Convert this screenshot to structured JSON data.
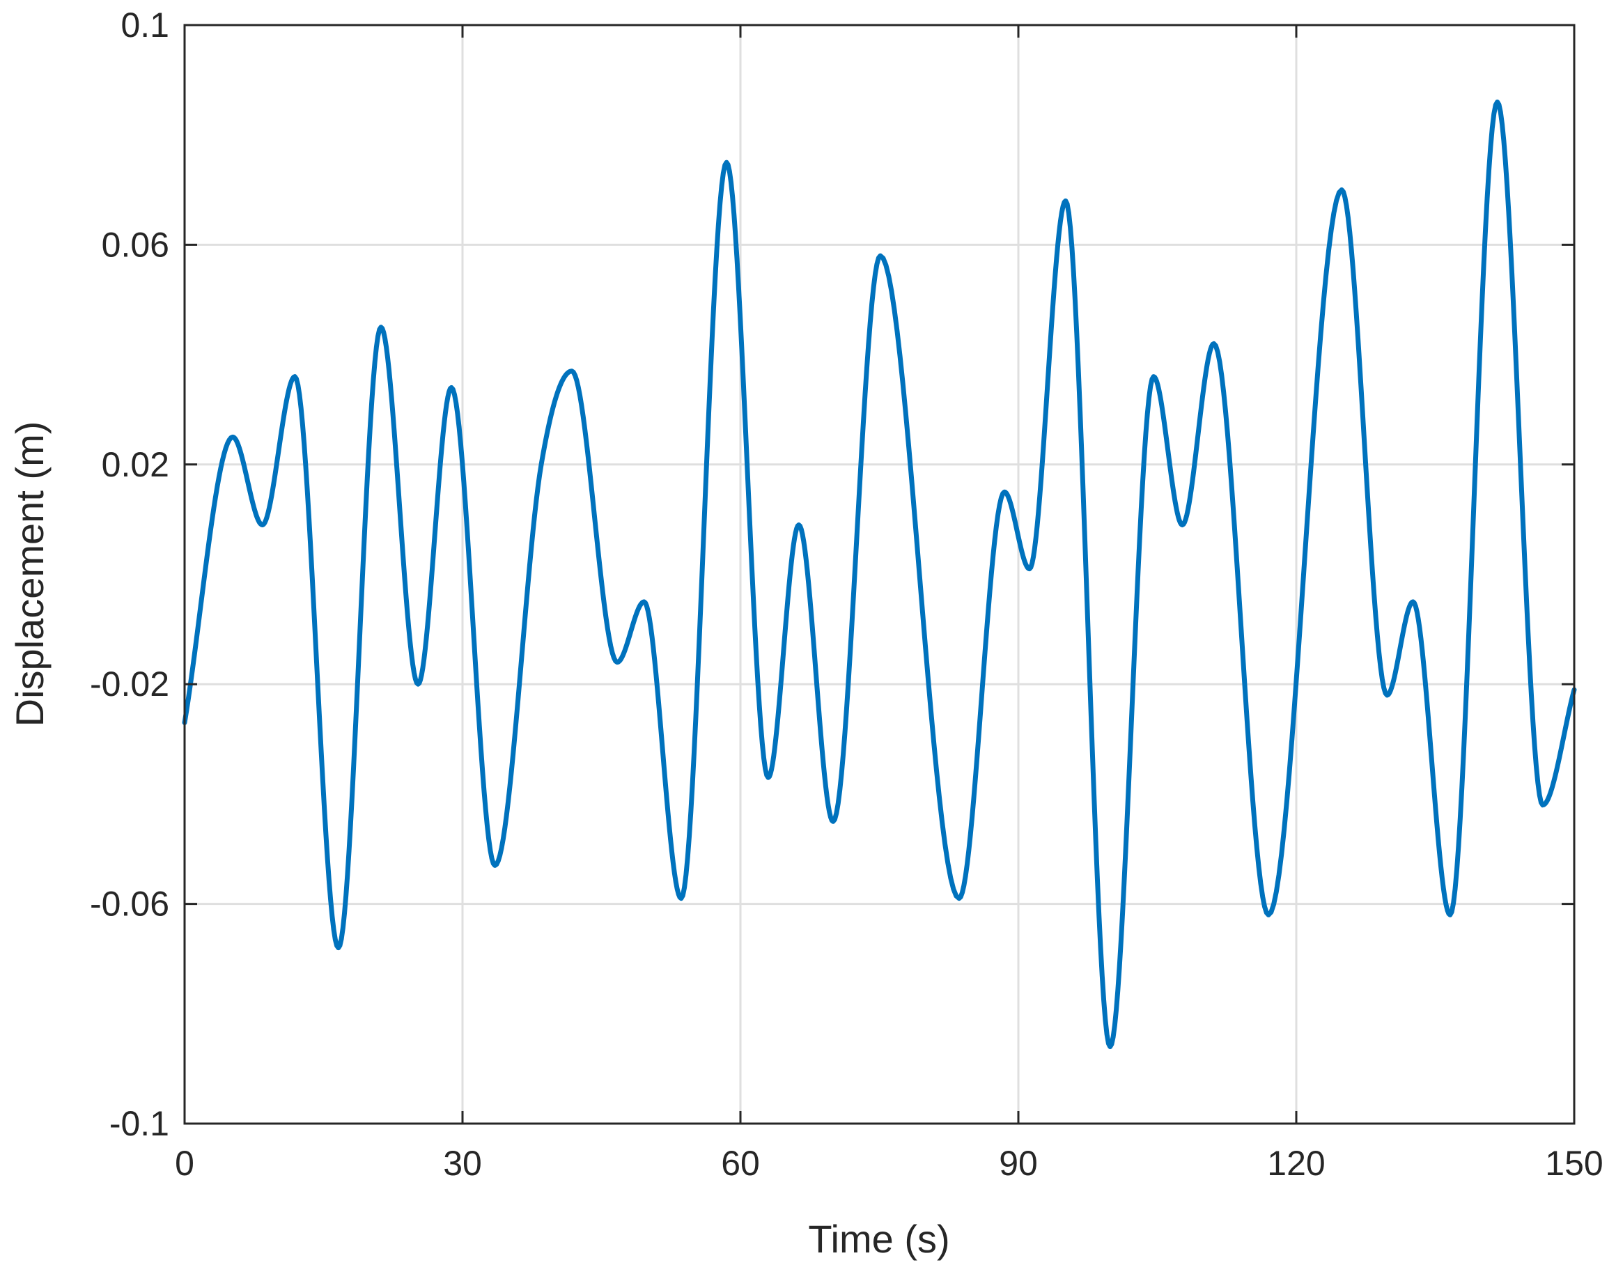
{
  "chart_data": {
    "type": "line",
    "xlabel": "Time (s)",
    "ylabel": "Displacement (m)",
    "xlim": [
      0,
      150
    ],
    "ylim": [
      -0.1,
      0.1
    ],
    "xticks": [
      0,
      30,
      60,
      90,
      120,
      150
    ],
    "xtick_labels": [
      "0",
      "30",
      "60",
      "90",
      "120",
      "150"
    ],
    "yticks": [
      -0.1,
      -0.06,
      -0.02,
      0.02,
      0.06,
      0.1
    ],
    "ytick_labels": [
      "-0.1",
      "-0.06",
      "-0.02",
      "0.02",
      "0.06",
      "0.1"
    ],
    "grid": true,
    "series": [
      {
        "color": "#0072bd",
        "x": [
          0,
          5.2,
          8.4,
          11.9,
          16.6,
          21.2,
          25.2,
          28.8,
          33.5,
          38.5,
          41.8,
          46.7,
          49.6,
          53.6,
          58.5,
          63,
          66.3,
          70,
          75.1,
          83.6,
          88.5,
          91.2,
          95.1,
          99.9,
          104.6,
          107.7,
          111.1,
          117,
          124.9,
          129.8,
          132.6,
          136.6,
          141.7,
          146.6,
          150
        ],
        "y": [
          -0.027,
          0.025,
          0.009,
          0.036,
          -0.068,
          0.045,
          -0.02,
          0.034,
          -0.053,
          0.02,
          0.037,
          -0.016,
          -0.005,
          -0.059,
          0.075,
          -0.037,
          0.009,
          -0.045,
          0.058,
          -0.059,
          0.015,
          0.001,
          0.068,
          -0.086,
          0.036,
          0.009,
          0.042,
          -0.062,
          0.07,
          -0.022,
          -0.005,
          -0.062,
          0.086,
          -0.042,
          -0.021
        ]
      }
    ]
  }
}
